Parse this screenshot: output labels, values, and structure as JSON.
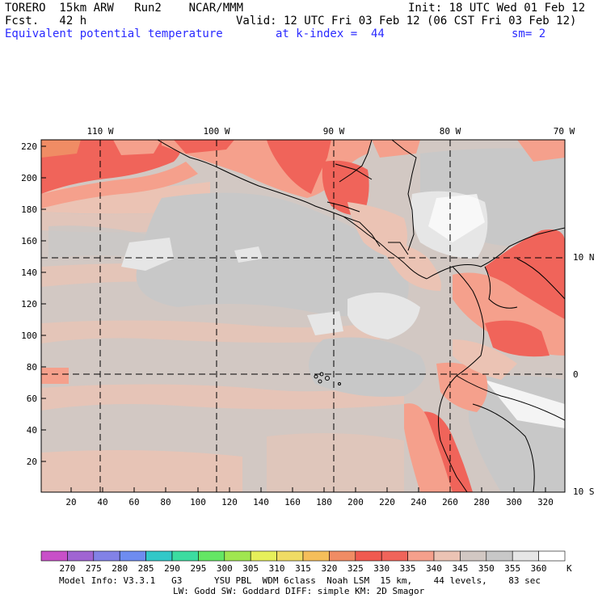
{
  "header": {
    "title_left": "TORERO  15km ARW   Run2    NCAR/MMM",
    "init": "Init: 18 UTC Wed 01 Feb 12",
    "fcst": "Fcst.   42 h",
    "valid": "Valid: 12 UTC Fri 03 Feb 12 (06 CST Fri 03 Feb 12)",
    "field": "Equivalent potential temperature",
    "level": "at k-index =  44",
    "smooth": "sm= 2"
  },
  "map": {
    "lon_labels": [
      "110 W",
      "100 W",
      "90 W",
      "80 W",
      "70 W"
    ],
    "lat_labels": [
      "10 N",
      "0",
      "10 S"
    ],
    "x_ticks": [
      "20",
      "40",
      "60",
      "80",
      "100",
      "120",
      "140",
      "160",
      "180",
      "200",
      "220",
      "240",
      "260",
      "280",
      "300",
      "320"
    ],
    "y_ticks": [
      "20",
      "40",
      "60",
      "80",
      "100",
      "120",
      "140",
      "160",
      "180",
      "200",
      "220"
    ],
    "grid_x_range": [
      1,
      335
    ],
    "grid_y_range": [
      1,
      222
    ]
  },
  "colorbar": {
    "levels": [
      "270",
      "275",
      "280",
      "285",
      "290",
      "295",
      "300",
      "305",
      "310",
      "315",
      "320",
      "325",
      "330",
      "335",
      "340",
      "345",
      "350",
      "355",
      "360"
    ],
    "unit": "K",
    "colors": [
      "#c850c8",
      "#a064d2",
      "#8282e6",
      "#6e8cf0",
      "#32c8c8",
      "#3cdca0",
      "#64e664",
      "#a0e650",
      "#e6f05a",
      "#f0dc64",
      "#f5be5a",
      "#f08c64",
      "#f05a50",
      "#f0645a",
      "#f5a08c",
      "#ebc3b4",
      "#d2c8c3",
      "#c8c8c8",
      "#e6e6e6",
      "#ffffff"
    ]
  },
  "footer": {
    "line1": "Model Info: V3.3.1   G3      YSU PBL  WDM 6class  Noah LSM  15 km,    44 levels,    83 sec",
    "line2": "LW: Godd SW: Goddard DIFF: simple KM: 2D Smagor"
  }
}
